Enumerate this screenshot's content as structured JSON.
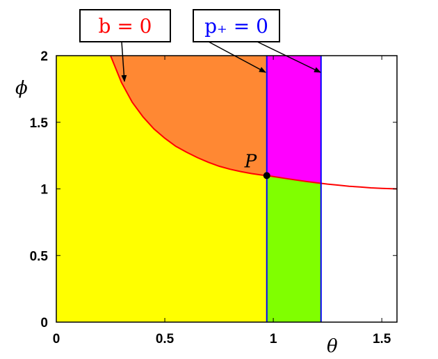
{
  "chart_data": {
    "type": "area",
    "xlabel": "θ",
    "ylabel": "ϕ",
    "xlim": [
      0,
      1.57
    ],
    "ylim": [
      0,
      2
    ],
    "xticks": [
      "0",
      "0.5",
      "1",
      "1.5"
    ],
    "yticks": [
      "0",
      "0.5",
      "1",
      "1.5",
      "2"
    ],
    "curve_b0": {
      "label": "b = 0",
      "color": "#ff0000",
      "asymptote": 1,
      "x": [
        0.25,
        0.3,
        0.35,
        0.4,
        0.45,
        0.5,
        0.55,
        0.6,
        0.65,
        0.7,
        0.75,
        0.8,
        0.85,
        0.9,
        0.95,
        0.97,
        1.0,
        1.05,
        1.1,
        1.15,
        1.2,
        1.25,
        1.3,
        1.35,
        1.4,
        1.45,
        1.5,
        1.57
      ],
      "y": [
        2.0,
        1.8,
        1.65,
        1.54,
        1.45,
        1.38,
        1.32,
        1.275,
        1.235,
        1.2,
        1.17,
        1.148,
        1.13,
        1.115,
        1.103,
        1.1,
        1.093,
        1.08,
        1.068,
        1.056,
        1.046,
        1.036,
        1.028,
        1.02,
        1.014,
        1.008,
        1.004,
        1.0
      ]
    },
    "lines_p0": {
      "label": "p₊ = 0",
      "color": "#0000ff",
      "x": [
        0.97,
        1.22
      ]
    },
    "point": {
      "label": "P",
      "x": 0.97,
      "y": 1.1
    },
    "regions": {
      "yellow": "#ffff00",
      "orange": "#ff8833",
      "magenta": "#ff00ff",
      "green": "#80ff00"
    }
  }
}
